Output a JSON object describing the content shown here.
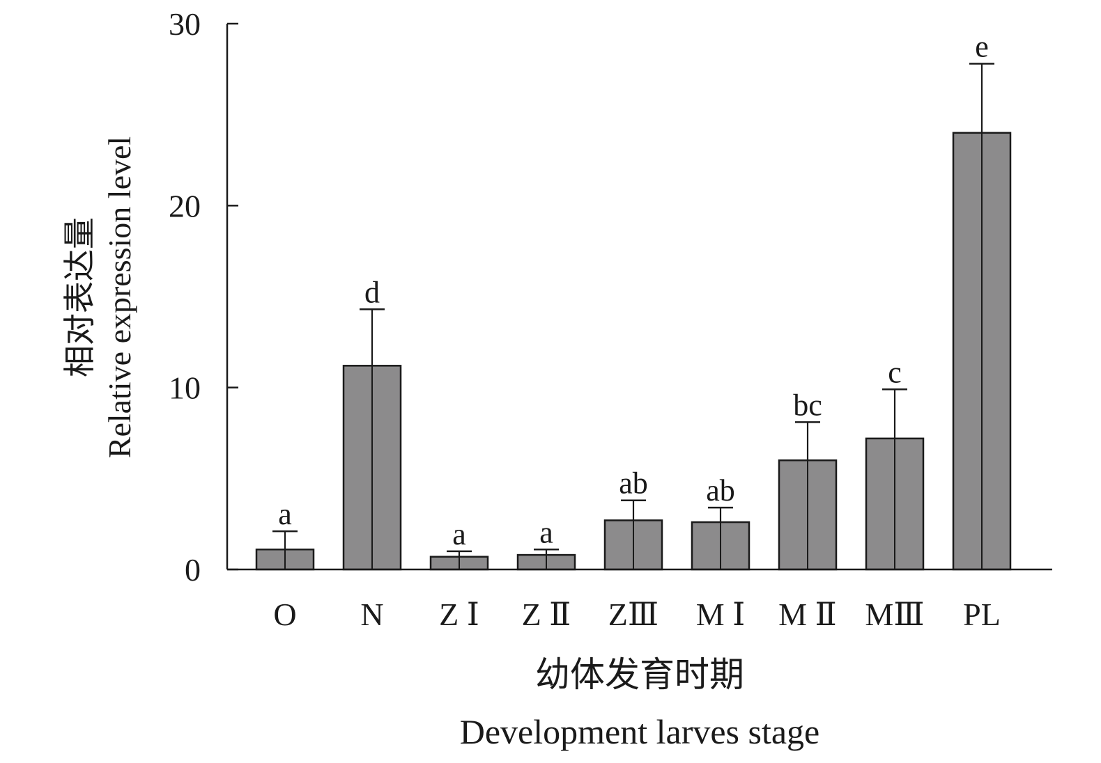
{
  "chart_data": {
    "type": "bar",
    "categories": [
      "O",
      "N",
      "Z Ⅰ",
      "Z Ⅱ",
      "ZⅢ",
      "M Ⅰ",
      "M Ⅱ",
      "MⅢ",
      "PL"
    ],
    "values": [
      1.1,
      11.2,
      0.7,
      0.8,
      2.7,
      2.6,
      6.0,
      7.2,
      24.0
    ],
    "errors": [
      1.0,
      3.1,
      0.3,
      0.3,
      1.1,
      0.8,
      2.1,
      2.7,
      3.8
    ],
    "significance": [
      "a",
      "d",
      "a",
      "a",
      "ab",
      "ab",
      "bc",
      "c",
      "e"
    ],
    "ylim": [
      0,
      30
    ],
    "yticks": [
      0,
      10,
      20,
      30
    ],
    "ylabel_cn": "相对表达量",
    "ylabel_en": "Relative expression level",
    "xlabel_cn": "幼体发育时期",
    "xlabel_en": "Development larves stage",
    "grid": false,
    "colors": {
      "bar_fill": "#8c8b8c",
      "stroke": "#1a1a1a"
    }
  }
}
